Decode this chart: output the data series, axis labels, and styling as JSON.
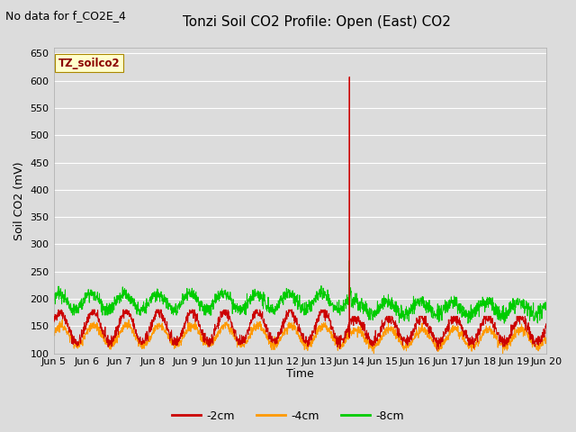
{
  "title": "Tonzi Soil CO2 Profile: Open (East) CO2",
  "subtitle": "No data for f_CO2E_4",
  "ylabel": "Soil CO2 (mV)",
  "xlabel": "Time",
  "ylim": [
    100,
    660
  ],
  "yticks": [
    100,
    150,
    200,
    250,
    300,
    350,
    400,
    450,
    500,
    550,
    600,
    650
  ],
  "xtick_labels": [
    "Jun 5",
    "Jun 6",
    "Jun 7",
    "Jun 8",
    "Jun 9",
    "Jun 10",
    "Jun 11",
    "Jun 12",
    "Jun 13",
    "Jun 14",
    "Jun 15",
    "Jun 16",
    "Jun 17",
    "Jun 18",
    "Jun 19",
    "Jun 20"
  ],
  "legend_labels": [
    "-2cm",
    "-4cm",
    "-8cm"
  ],
  "legend_colors": [
    "#cc0000",
    "#ff9900",
    "#00cc00"
  ],
  "line_colors": [
    "#cc0000",
    "#ff9900",
    "#00cc00"
  ],
  "background_color": "#dcdcdc",
  "plot_bg_color": "#dcdcdc",
  "title_fontsize": 11,
  "subtitle_fontsize": 9,
  "label_fontsize": 9,
  "tick_fontsize": 8,
  "annotation_box_color": "#ffffcc",
  "annotation_text": "TZ_soilco2",
  "annotation_text_color": "#8b0000",
  "grid_color": "#ffffff",
  "spine_color": "#aaaaaa"
}
